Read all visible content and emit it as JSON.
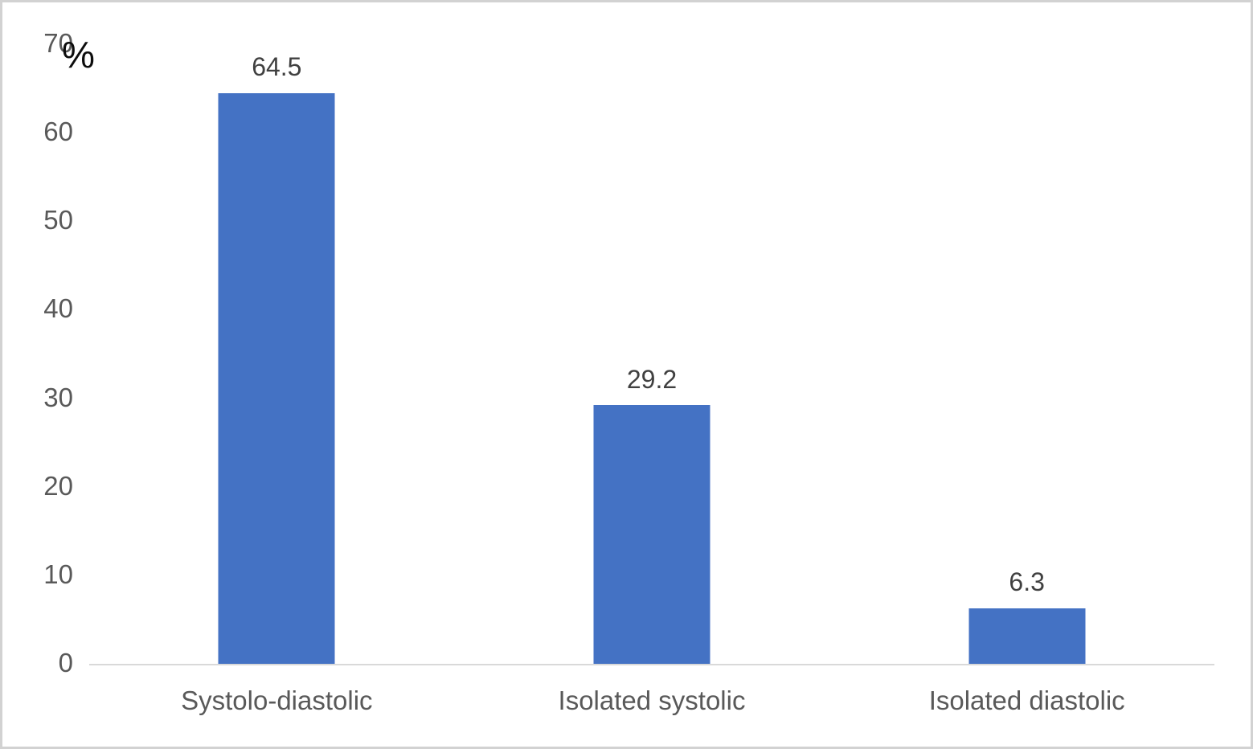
{
  "chart_data": {
    "type": "bar",
    "title": "",
    "xlabel": "",
    "ylabel": "%",
    "categories": [
      "Systolo-diastolic",
      "Isolated systolic",
      "Isolated diastolic"
    ],
    "values": [
      64.5,
      29.2,
      6.3
    ],
    "data_labels": [
      "64.5",
      "29.2",
      "6.3"
    ],
    "ylim": [
      0,
      70
    ],
    "yticks": [
      0,
      10,
      20,
      30,
      40,
      50,
      60,
      70
    ],
    "grid": false,
    "legend_position": "none",
    "colors": {
      "bar": "#4472C4",
      "tick_text": "#595959",
      "category_text": "#595959",
      "data_label_text": "#404040",
      "axis_line": "#D9D9D9",
      "frame_border": "#D2D2D2",
      "background": "#FFFFFF",
      "axis_title_text": "#0D0D0D"
    }
  }
}
